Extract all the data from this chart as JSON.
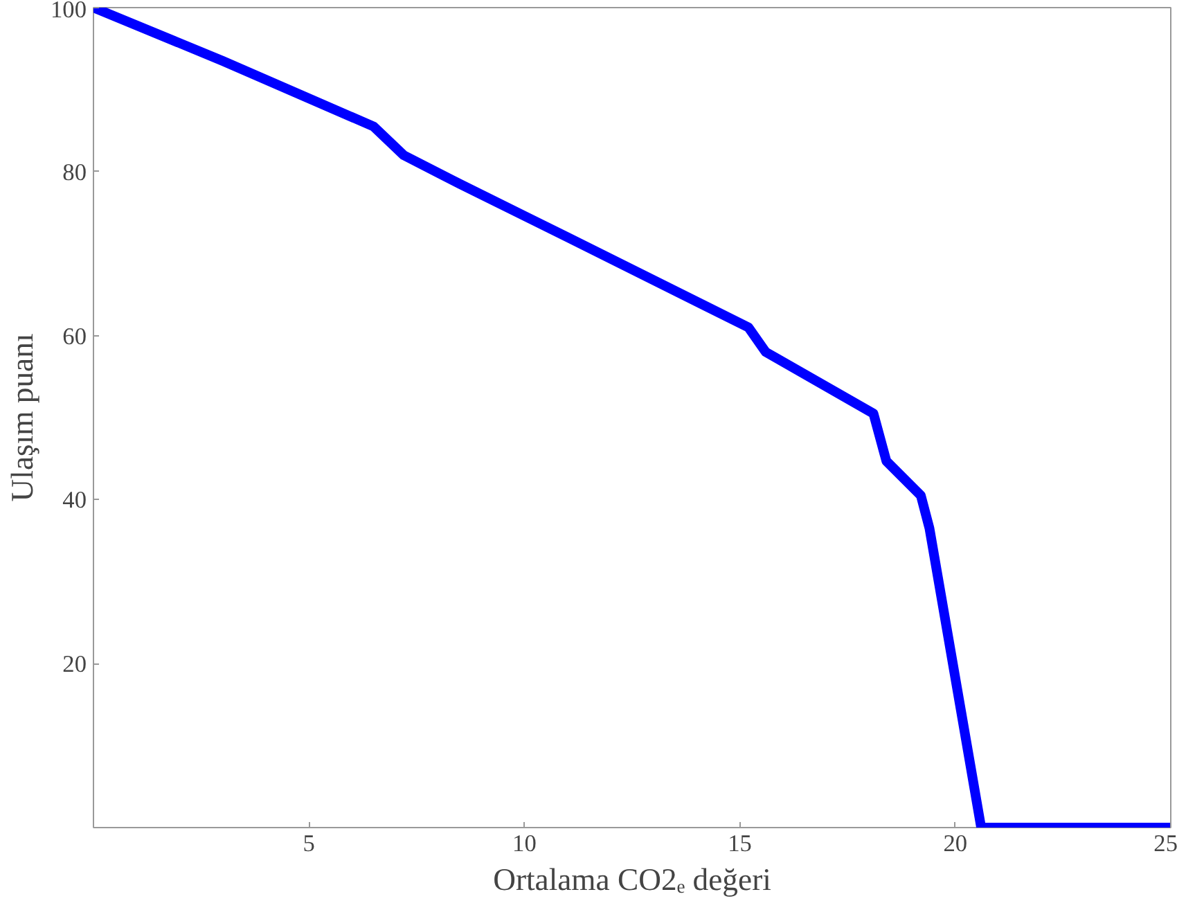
{
  "chart_data": {
    "type": "line",
    "xlabel": "Ortalama CO2ₑ değeri",
    "ylabel": "Ulaşım puanı",
    "x": [
      0,
      3,
      6.5,
      7.2,
      8.5,
      11,
      15.2,
      15.6,
      18.1,
      18.4,
      19.2,
      19.4,
      20.6,
      25
    ],
    "series": [
      {
        "color": "#0000ff",
        "values": [
          100,
          93.5,
          85.5,
          82,
          78.5,
          72,
          61,
          58,
          50.5,
          44.7,
          40.5,
          36.5,
          0,
          0
        ]
      }
    ],
    "xlim": [
      0,
      25
    ],
    "ylim": [
      0,
      100
    ],
    "xticks": [
      {
        "value": 0,
        "label": null
      },
      5,
      10,
      15,
      20,
      25
    ],
    "yticks": [
      {
        "value": 0,
        "label": null
      },
      20,
      40,
      60,
      80,
      100
    ],
    "marker": "none",
    "line_style": "solid"
  }
}
